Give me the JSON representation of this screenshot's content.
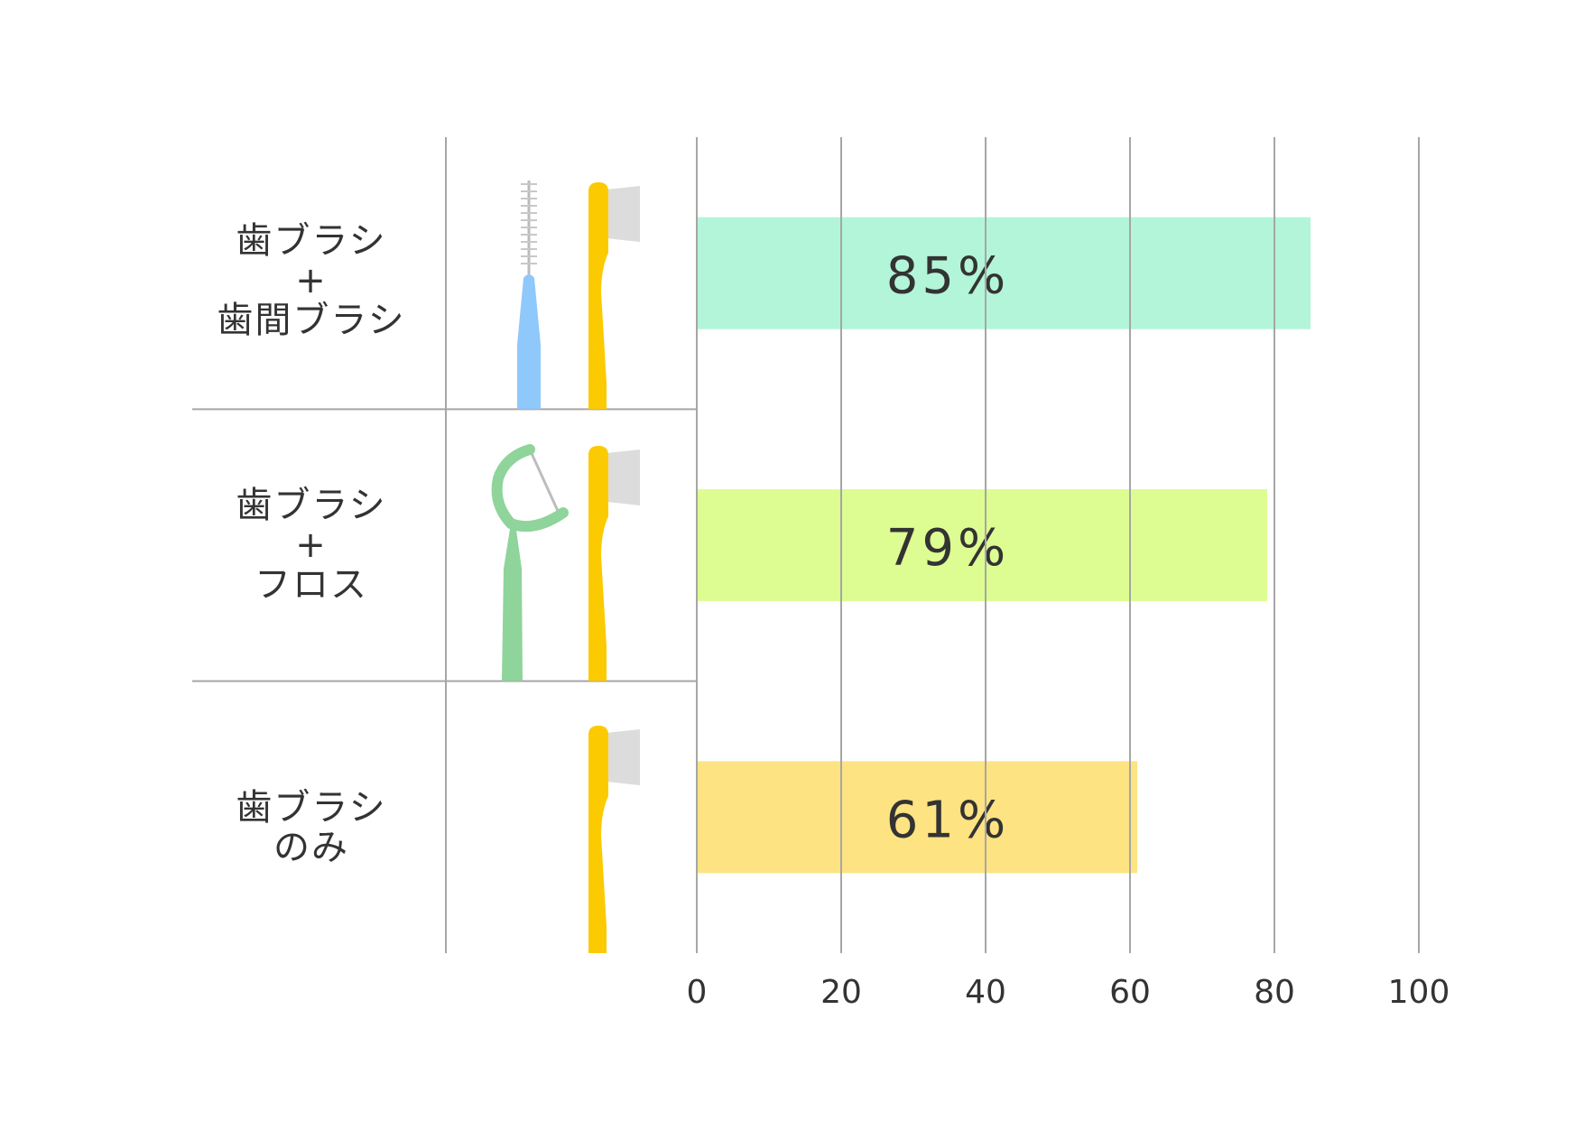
{
  "chart_data": {
    "type": "bar",
    "orientation": "horizontal",
    "categories": [
      [
        "歯ブラシ",
        "+",
        "歯間ブラシ"
      ],
      [
        "歯ブラシ",
        "+",
        "フロス"
      ],
      [
        "歯ブラシ",
        "のみ"
      ]
    ],
    "values": [
      85,
      79,
      61
    ],
    "value_labels": [
      "85%",
      "79%",
      "61%"
    ],
    "bar_colors": [
      "#b2f5d9",
      "#ddfd92",
      "#fee382"
    ],
    "xlim": [
      0,
      100
    ],
    "x_ticks": [
      "0",
      "20",
      "40",
      "60",
      "80",
      "100"
    ],
    "grid": true,
    "title": "",
    "xlabel": "",
    "ylabel": "",
    "icons": [
      [
        "interdental-brush-icon",
        "toothbrush-icon"
      ],
      [
        "floss-pick-icon",
        "toothbrush-icon"
      ],
      [
        "toothbrush-icon"
      ]
    ],
    "icon_colors": {
      "toothbrush": "#fcca00",
      "bristles": "#dcdcdc",
      "interdental": "#8fc8fb",
      "floss_pick": "#8fd49a"
    }
  }
}
